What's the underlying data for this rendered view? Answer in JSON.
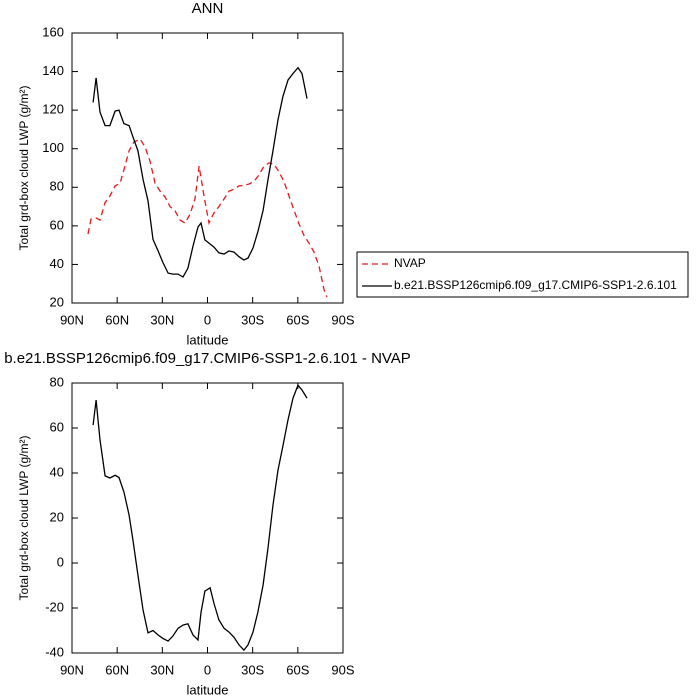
{
  "chart_data": [
    {
      "type": "line",
      "title": "ANN",
      "xlabel": "latitude",
      "ylabel": "Total grd-box cloud LWP (g/m²)",
      "xlim": [
        90,
        -90
      ],
      "xticks": [
        {
          "value": 90,
          "label": "90N"
        },
        {
          "value": 60,
          "label": "60N"
        },
        {
          "value": 30,
          "label": "30N"
        },
        0,
        {
          "value": -30,
          "label": "30S"
        },
        {
          "value": -60,
          "label": "60S"
        },
        {
          "value": -90,
          "label": "90S"
        }
      ],
      "ylim": [
        20,
        160
      ],
      "yticks": [
        20,
        40,
        60,
        80,
        100,
        120,
        140,
        160
      ],
      "legend": "right",
      "series": [
        {
          "name": "NVAP",
          "color": "#e41a1c",
          "dashed": true,
          "x": [
            79.4,
            77.4,
            74,
            71.4,
            68.1,
            64.8,
            61.4,
            58.1,
            55.5,
            52.1,
            48.8,
            44.8,
            41.5,
            38.2,
            34.8,
            31.5,
            28.2,
            24.9,
            21.5,
            18.2,
            14.9,
            11.6,
            8.3,
            5.6,
            2.3,
            -1,
            -4.3,
            -7.6,
            -11,
            -14.3,
            -17.6,
            -20.9,
            -24.2,
            -27.6,
            -30.9,
            -34.2,
            -37.5,
            -40.8,
            -44.2,
            -47.5,
            -50.8,
            -54.1,
            -57.5,
            -60.8,
            -64.1,
            -67.4,
            -70.7,
            -74.1,
            -77.4,
            -79.4
          ],
          "values": [
            55.8,
            63.5,
            64,
            63,
            72,
            75.5,
            80.7,
            82,
            89,
            99,
            103.5,
            105,
            101,
            93.6,
            82,
            78,
            75,
            70,
            67.7,
            63,
            61.5,
            66,
            74,
            91,
            75.5,
            61.5,
            66.7,
            70,
            74,
            78,
            79,
            80.7,
            81,
            81.7,
            83,
            86.4,
            91,
            92.6,
            92,
            88,
            83,
            75.5,
            68,
            61,
            55,
            51,
            46.5,
            39,
            27,
            23
          ]
        },
        {
          "name": "b.e21.BSSP126cmip6.f09_g17.CMIP6-SSP1-2.6.101",
          "color": "#000000",
          "dashed": false,
          "x": [
            76,
            74,
            71.4,
            68,
            64.8,
            61.4,
            58.8,
            55.5,
            52.1,
            49.5,
            46.2,
            42.8,
            39.5,
            36.2,
            32.8,
            29.6,
            26.2,
            22.9,
            19.6,
            16.3,
            13,
            9.6,
            6.3,
            4.3,
            1.7,
            -1.7,
            -4.3,
            -7.6,
            -11,
            -14.3,
            -17.6,
            -20.9,
            -24.2,
            -26.9,
            -30.2,
            -33.5,
            -36.9,
            -40.2,
            -43.5,
            -46.8,
            -50.1,
            -53.5,
            -56.8,
            -60.1,
            -62.8,
            -66.1
          ],
          "values": [
            124,
            136.7,
            119,
            112,
            112,
            119.5,
            120,
            113,
            112,
            106,
            99,
            84,
            73,
            53,
            47,
            41,
            35.5,
            35,
            35,
            33.5,
            38,
            49.5,
            59.4,
            61.5,
            52.7,
            50.6,
            49,
            46,
            45.4,
            47,
            46.4,
            44,
            42.3,
            43.3,
            48.5,
            57,
            68,
            84,
            99,
            115,
            127,
            135.6,
            139,
            142,
            139,
            126
          ]
        }
      ]
    },
    {
      "type": "line",
      "title": "b.e21.BSSP126cmip6.f09_g17.CMIP6-SSP1-2.6.101 - NVAP",
      "xlabel": "latitude",
      "ylabel": "Total grd-box cloud LWP (g/m²)",
      "xlim": [
        90,
        -90
      ],
      "xticks": [
        {
          "value": 90,
          "label": "90N"
        },
        {
          "value": 60,
          "label": "60N"
        },
        {
          "value": 30,
          "label": "30N"
        },
        0,
        {
          "value": -30,
          "label": "30S"
        },
        {
          "value": -60,
          "label": "60S"
        },
        {
          "value": -90,
          "label": "90S"
        }
      ],
      "ylim": [
        -40,
        80
      ],
      "yticks": [
        -40,
        -20,
        0,
        20,
        40,
        60,
        80
      ],
      "series": [
        {
          "color": "#000000",
          "dashed": false,
          "x": [
            76,
            74,
            71.4,
            68,
            64.8,
            61.4,
            58.8,
            55.5,
            52.1,
            49.5,
            46.2,
            42.8,
            39.5,
            36.2,
            32.8,
            29.6,
            26.2,
            22.9,
            19.6,
            16.3,
            13,
            9.6,
            6.3,
            4.3,
            1.7,
            -1.7,
            -4.3,
            -7.6,
            -11,
            -14.3,
            -17.6,
            -20.9,
            -24.2,
            -26.9,
            -30.2,
            -33.5,
            -36.9,
            -40.2,
            -43.5,
            -46.8,
            -50.1,
            -53.5,
            -56.8,
            -60.1,
            -62.8,
            -66.1
          ],
          "values": [
            61.3,
            72.4,
            54.7,
            38.7,
            37.8,
            39,
            38,
            31.6,
            21.3,
            10,
            -5.3,
            -21,
            -31,
            -30,
            -32,
            -33.5,
            -34.7,
            -32.4,
            -29,
            -27.6,
            -27,
            -32,
            -34.2,
            -22,
            -12.5,
            -11,
            -18,
            -25.3,
            -29,
            -30.7,
            -33,
            -36.4,
            -38.7,
            -36.4,
            -30.7,
            -21.8,
            -9.8,
            6.7,
            25.8,
            41.3,
            52,
            63.6,
            73.3,
            79,
            76.9,
            73.3
          ]
        }
      ]
    }
  ]
}
